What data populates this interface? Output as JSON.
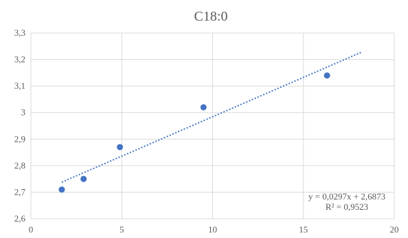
{
  "chart_data": {
    "type": "scatter",
    "title": "C18:0",
    "xlabel": "",
    "ylabel": "",
    "xlim": [
      0,
      20
    ],
    "ylim": [
      2.6,
      3.3
    ],
    "x_ticks": [
      0,
      5,
      10,
      15,
      20
    ],
    "x_tick_labels": [
      "0",
      "5",
      "10",
      "15",
      "20"
    ],
    "y_ticks": [
      2.6,
      2.7,
      2.8,
      2.9,
      3.0,
      3.1,
      3.2,
      3.3
    ],
    "y_tick_labels": [
      "2,6",
      "2,7",
      "2,8",
      "2,9",
      "3",
      "3,1",
      "3,2",
      "3,3"
    ],
    "grid": true,
    "legend": "none",
    "series": [
      {
        "points": [
          {
            "x": 1.7,
            "y": 2.71
          },
          {
            "x": 2.9,
            "y": 2.75
          },
          {
            "x": 4.9,
            "y": 2.87
          },
          {
            "x": 9.5,
            "y": 3.02
          },
          {
            "x": 16.3,
            "y": 3.14
          }
        ],
        "color": "#4472C4"
      }
    ],
    "trendline": {
      "type": "linear",
      "slope": 0.0297,
      "intercept": 2.6873,
      "x_range": [
        1.7,
        18.2
      ],
      "color": "#4472C4",
      "style": "dotted",
      "equation_label": "y = 0,0297x + 2,6873",
      "r2_label": "R² = 0,9523"
    },
    "colors": {
      "gridline": "#D9D9D9",
      "text": "#595959",
      "title": "#595959"
    }
  }
}
